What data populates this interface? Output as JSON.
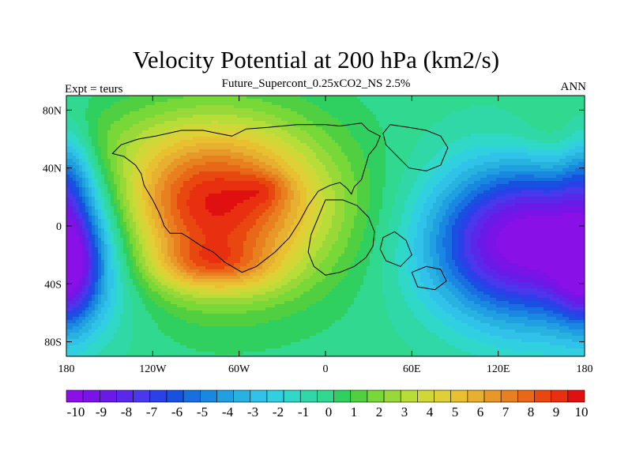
{
  "title": "Velocity Potential at 200 hPa (km2/s)",
  "subtitle": "Future_Supercont_0.25xCO2_NS 2.5%",
  "left_label": "Expt = teurs",
  "right_label": "ANN",
  "lon_ticks": [
    {
      "value": -180,
      "label": "180"
    },
    {
      "value": -120,
      "label": "120W"
    },
    {
      "value": -60,
      "label": "60W"
    },
    {
      "value": 0,
      "label": "0"
    },
    {
      "value": 60,
      "label": "60E"
    },
    {
      "value": 120,
      "label": "120E"
    },
    {
      "value": 180,
      "label": "180"
    }
  ],
  "lat_ticks": [
    {
      "value": 80,
      "label": "80N"
    },
    {
      "value": 40,
      "label": "40N"
    },
    {
      "value": 0,
      "label": "0"
    },
    {
      "value": -40,
      "label": "40S"
    },
    {
      "value": -80,
      "label": "80S"
    }
  ],
  "lon_range": [
    -180,
    180
  ],
  "lat_range": [
    -90,
    90
  ],
  "colorbar": {
    "labels": [
      "-10",
      "-9",
      "-8",
      "-7",
      "-6",
      "-5",
      "-4",
      "-3",
      "-2",
      "-1",
      "0",
      "1",
      "2",
      "3",
      "4",
      "5",
      "6",
      "7",
      "8",
      "9",
      "10"
    ],
    "colors": [
      "#8a10e8",
      "#7a14e6",
      "#6a1ae6",
      "#5a28e8",
      "#4a38ec",
      "#2a40e8",
      "#1850e0",
      "#1870e0",
      "#1888e0",
      "#20a0e0",
      "#28b2e0",
      "#30c2e8",
      "#30d0e0",
      "#30d8c8",
      "#30d8a8",
      "#30d890",
      "#30d060",
      "#50d040",
      "#78d838",
      "#98d838",
      "#b8dc38",
      "#d0d838",
      "#e0d038",
      "#e8c030",
      "#e8b030",
      "#e89828",
      "#e88020",
      "#e86818",
      "#e84810",
      "#e83010",
      "#e01010"
    ]
  },
  "field_centers": [
    {
      "lon": -78,
      "lat": 15,
      "amp": 10.0,
      "slon": 55,
      "slat": 40
    },
    {
      "lon": -85,
      "lat": -27,
      "amp": 3.0,
      "slon": 25,
      "slat": 12
    },
    {
      "lon": -42,
      "lat": 25,
      "amp": 1.5,
      "slon": 12,
      "slat": 8
    },
    {
      "lon": -50,
      "lat": -30,
      "amp": 1.0,
      "slon": 20,
      "slat": 12
    },
    {
      "lon": 150,
      "lat": -10,
      "amp": -10.5,
      "slon": 48,
      "slat": 40
    },
    {
      "lon": 100,
      "lat": -15,
      "amp": -1.5,
      "slon": 30,
      "slat": 30
    },
    {
      "lon": 170,
      "lat": 60,
      "amp": 1.5,
      "slon": 35,
      "slat": 18
    },
    {
      "lon": -178,
      "lat": -30,
      "amp": -5.5,
      "slon": 15,
      "slat": 28
    },
    {
      "lon": -178,
      "lat": 40,
      "amp": -3.0,
      "slon": 12,
      "slat": 25
    }
  ],
  "coastlines": [
    [
      [
        -65,
        62
      ],
      [
        -55,
        67
      ],
      [
        -40,
        68
      ],
      [
        -20,
        70
      ],
      [
        0,
        70
      ],
      [
        10,
        69
      ],
      [
        25,
        71
      ],
      [
        30,
        66
      ],
      [
        38,
        62
      ],
      [
        35,
        55
      ],
      [
        30,
        49
      ],
      [
        28,
        42
      ],
      [
        25,
        32
      ],
      [
        20,
        27
      ],
      [
        18,
        22
      ],
      [
        15,
        26
      ],
      [
        10,
        30
      ],
      [
        3,
        28
      ],
      [
        -5,
        24
      ],
      [
        -12,
        14
      ],
      [
        -18,
        3
      ],
      [
        -25,
        -8
      ],
      [
        -35,
        -18
      ],
      [
        -48,
        -28
      ],
      [
        -58,
        -32
      ],
      [
        -70,
        -25
      ],
      [
        -78,
        -18
      ],
      [
        -86,
        -14
      ],
      [
        -95,
        -8
      ],
      [
        -100,
        -5
      ],
      [
        -108,
        -5
      ],
      [
        -112,
        0
      ],
      [
        -115,
        8
      ],
      [
        -120,
        18
      ],
      [
        -126,
        28
      ],
      [
        -128,
        36
      ],
      [
        -132,
        42
      ],
      [
        -140,
        48
      ],
      [
        -148,
        50
      ],
      [
        -142,
        56
      ],
      [
        -130,
        60
      ],
      [
        -118,
        62
      ],
      [
        -100,
        66
      ],
      [
        -85,
        66
      ],
      [
        -75,
        64
      ],
      [
        -65,
        62
      ]
    ],
    [
      [
        0,
        18
      ],
      [
        12,
        18
      ],
      [
        22,
        14
      ],
      [
        30,
        6
      ],
      [
        34,
        -4
      ],
      [
        33,
        -14
      ],
      [
        28,
        -22
      ],
      [
        20,
        -28
      ],
      [
        10,
        -32
      ],
      [
        0,
        -34
      ],
      [
        -8,
        -28
      ],
      [
        -12,
        -18
      ],
      [
        -10,
        -6
      ],
      [
        -5,
        6
      ],
      [
        0,
        18
      ]
    ],
    [
      [
        45,
        70
      ],
      [
        58,
        68
      ],
      [
        70,
        66
      ],
      [
        80,
        62
      ],
      [
        85,
        54
      ],
      [
        80,
        42
      ],
      [
        70,
        38
      ],
      [
        58,
        40
      ],
      [
        50,
        48
      ],
      [
        42,
        56
      ],
      [
        40,
        64
      ],
      [
        45,
        70
      ]
    ],
    [
      [
        40,
        -8
      ],
      [
        48,
        -4
      ],
      [
        56,
        -10
      ],
      [
        60,
        -20
      ],
      [
        52,
        -28
      ],
      [
        42,
        -24
      ],
      [
        38,
        -16
      ],
      [
        40,
        -8
      ]
    ],
    [
      [
        60,
        -32
      ],
      [
        70,
        -28
      ],
      [
        80,
        -30
      ],
      [
        84,
        -38
      ],
      [
        76,
        -44
      ],
      [
        64,
        -42
      ],
      [
        60,
        -32
      ]
    ]
  ]
}
